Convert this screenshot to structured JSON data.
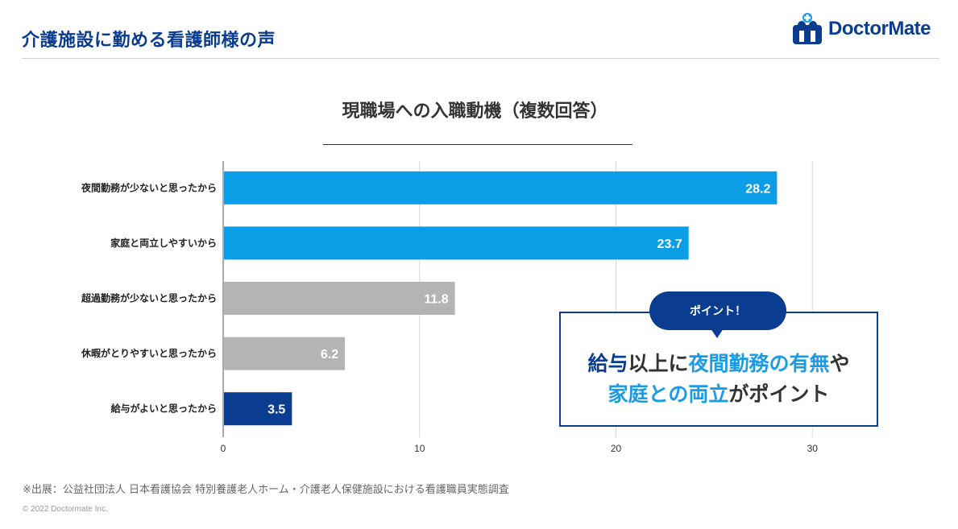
{
  "header": {
    "title": "介護施設に勤める看護師様の声",
    "logo_text": "DoctorMate"
  },
  "chart_data": {
    "type": "bar",
    "orientation": "horizontal",
    "title": "現職場への入職動機（複数回答）",
    "categories": [
      "夜間勤務が少ないと思ったから",
      "家庭と両立しやすいから",
      "超過勤務が少ないと思ったから",
      "休暇がとりやすいと思ったから",
      "給与がよいと思ったから"
    ],
    "values": [
      28.2,
      23.7,
      11.8,
      6.2,
      3.5
    ],
    "value_labels": [
      "28.2",
      "23.7",
      "11.8",
      "6.2",
      "3.5"
    ],
    "bar_colors": [
      "#0b9ee6",
      "#0b9ee6",
      "#b4b4b4",
      "#b4b4b4",
      "#0a3d8f"
    ],
    "xlim": [
      0,
      32
    ],
    "xticks": [
      0,
      10,
      20,
      30
    ],
    "xtick_labels": [
      "0",
      "10",
      "20",
      "30"
    ],
    "grid": true
  },
  "callout": {
    "badge": "ポイント！",
    "line1": [
      {
        "text": "給与",
        "tone": "dark"
      },
      {
        "text": "以上に",
        "tone": "plain"
      },
      {
        "text": "夜間勤務の有無",
        "tone": "light"
      },
      {
        "text": "や",
        "tone": "plain"
      }
    ],
    "line2": [
      {
        "text": "家庭との両立",
        "tone": "light"
      },
      {
        "text": "がポイント",
        "tone": "plain"
      }
    ]
  },
  "footer": {
    "source": "※出展：公益社団法人 日本看護協会 特別養護老人ホーム・介護老人保健施設における看護職員実態調査",
    "copyright": "© 2022 Doctormate Inc."
  }
}
